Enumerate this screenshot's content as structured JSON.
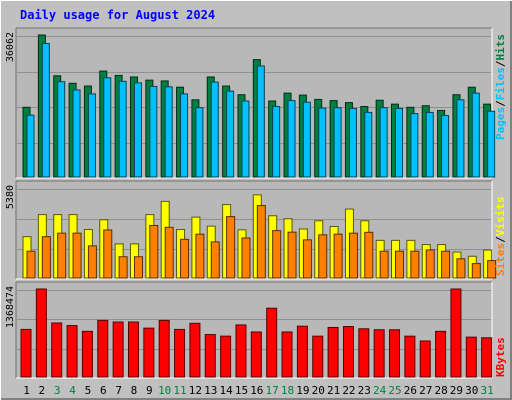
{
  "title": "Daily usage for August 2024",
  "colors": {
    "background": "#c0c0c0",
    "plot_background": "#b8b8b8",
    "grid": "#909090",
    "hits": "#008040",
    "files": "#00c0ff",
    "visits": "#ffff00",
    "sites": "#ff8000",
    "kbytes": "#ff0000",
    "title": "#0000ff",
    "weekend_day": "#008040"
  },
  "chart_data": [
    {
      "type": "bar",
      "panel": "hits-files",
      "x": [
        1,
        2,
        3,
        4,
        5,
        6,
        7,
        8,
        9,
        10,
        11,
        12,
        13,
        14,
        15,
        16,
        17,
        18,
        19,
        20,
        21,
        22,
        23,
        24,
        25,
        26,
        27,
        28,
        29,
        30,
        31
      ],
      "ylim": [
        0,
        36062
      ],
      "y_max_label": "36062",
      "legend": [
        "Hits",
        "Files",
        "Pages"
      ],
      "legend_separator": "/",
      "series": [
        {
          "name": "Hits",
          "values": [
            17700,
            36062,
            25700,
            23800,
            23100,
            26900,
            25800,
            25400,
            24600,
            24400,
            22800,
            19600,
            25400,
            23100,
            20900,
            29800,
            19300,
            21300,
            20800,
            19700,
            19400,
            18900,
            17900,
            19500,
            18500,
            17700,
            18100,
            16900,
            20900,
            22800,
            18500
          ]
        },
        {
          "name": "Files",
          "values": [
            15700,
            33900,
            24200,
            22100,
            21100,
            25200,
            24300,
            23900,
            23000,
            22900,
            21100,
            17600,
            24100,
            21800,
            19300,
            28200,
            17900,
            19400,
            19000,
            17500,
            17600,
            17400,
            16400,
            17600,
            17400,
            16100,
            16400,
            15600,
            19600,
            21300,
            16700
          ]
        },
        {
          "name": "Pages",
          "values": [
            0,
            0,
            0,
            0,
            0,
            0,
            0,
            0,
            0,
            0,
            0,
            0,
            0,
            0,
            0,
            0,
            0,
            0,
            0,
            0,
            0,
            0,
            0,
            0,
            0,
            0,
            0,
            0,
            0,
            0,
            0
          ]
        }
      ],
      "weekend_days": [
        3,
        4,
        10,
        11,
        17,
        18,
        24,
        25,
        31
      ]
    },
    {
      "type": "bar",
      "panel": "visits-sites",
      "x": [
        1,
        2,
        3,
        4,
        5,
        6,
        7,
        8,
        9,
        10,
        11,
        12,
        13,
        14,
        15,
        16,
        17,
        18,
        19,
        20,
        21,
        22,
        23,
        24,
        25,
        26,
        27,
        28,
        29,
        30,
        31
      ],
      "ylim": [
        0,
        5380
      ],
      "y_max_label": "5380",
      "legend": [
        "Visits",
        "Sites"
      ],
      "legend_separator": "/",
      "series": [
        {
          "name": "Visits",
          "values": [
            2470,
            3790,
            3790,
            3790,
            2900,
            3480,
            2040,
            2040,
            3790,
            4580,
            2900,
            3640,
            3100,
            4390,
            2880,
            4970,
            3720,
            3540,
            2930,
            3420,
            3080,
            4120,
            3420,
            2250,
            2250,
            2250,
            2000,
            2000,
            1550,
            1300,
            1670
          ]
        },
        {
          "name": "Sites",
          "values": [
            1600,
            2470,
            2680,
            2680,
            1920,
            2870,
            1270,
            1270,
            3140,
            3030,
            2310,
            2620,
            2160,
            3670,
            2390,
            4330,
            2830,
            2740,
            2280,
            2580,
            2620,
            2680,
            2730,
            1600,
            1600,
            1600,
            1680,
            1600,
            1150,
            860,
            1040
          ]
        }
      ]
    },
    {
      "type": "bar",
      "panel": "kbytes",
      "x": [
        1,
        2,
        3,
        4,
        5,
        6,
        7,
        8,
        9,
        10,
        11,
        12,
        13,
        14,
        15,
        16,
        17,
        18,
        19,
        20,
        21,
        22,
        23,
        24,
        25,
        26,
        27,
        28,
        29,
        30,
        31
      ],
      "ylim": [
        0,
        1368474
      ],
      "y_max_label": "1368474",
      "legend": [
        "KBytes"
      ],
      "series": [
        {
          "name": "KBytes",
          "values": [
            740000,
            1368474,
            840000,
            800000,
            710000,
            880000,
            855000,
            855000,
            760000,
            880000,
            740000,
            835000,
            660000,
            635000,
            810000,
            700000,
            1070000,
            700000,
            790000,
            635000,
            770000,
            785000,
            750000,
            735000,
            735000,
            635000,
            560000,
            710000,
            1368474,
            620000,
            610000
          ]
        }
      ]
    }
  ]
}
